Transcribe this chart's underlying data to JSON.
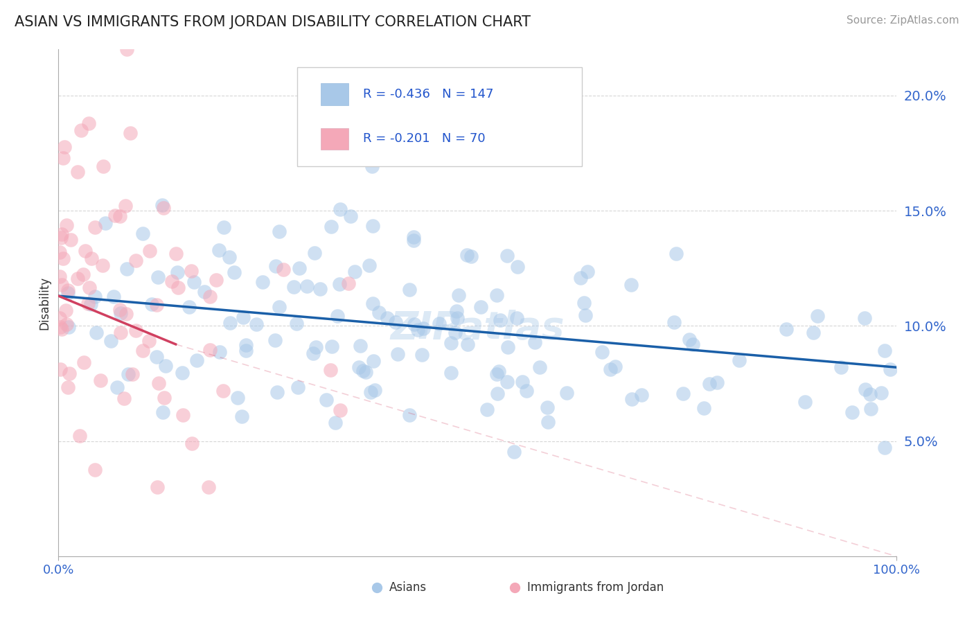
{
  "title": "ASIAN VS IMMIGRANTS FROM JORDAN DISABILITY CORRELATION CHART",
  "source": "Source: ZipAtlas.com",
  "ylabel": "Disability",
  "xlim": [
    0,
    1.0
  ],
  "ylim": [
    0,
    0.22
  ],
  "yticks": [
    0.05,
    0.1,
    0.15,
    0.2
  ],
  "ytick_labels": [
    "5.0%",
    "10.0%",
    "15.0%",
    "20.0%"
  ],
  "xtick_labels": [
    "0.0%",
    "100.0%"
  ],
  "legend_r_asian": "-0.436",
  "legend_n_asian": "147",
  "legend_r_jordan": "-0.201",
  "legend_n_jordan": "70",
  "color_asian": "#a8c8e8",
  "color_jordan": "#f4a8b8",
  "line_color_asian": "#1a5fa8",
  "line_color_jordan": "#d04060",
  "watermark": "ZIPatlas",
  "background_color": "#ffffff",
  "grid_color": "#cccccc",
  "asian_line_start_x": 0.0,
  "asian_line_start_y": 0.113,
  "asian_line_end_x": 1.0,
  "asian_line_end_y": 0.082,
  "jordan_line_start_x": 0.0,
  "jordan_line_start_y": 0.113,
  "jordan_line_solid_end_x": 0.14,
  "jordan_line_solid_end_y": 0.092,
  "jordan_line_end_x": 1.0,
  "jordan_line_end_y": 0.0
}
